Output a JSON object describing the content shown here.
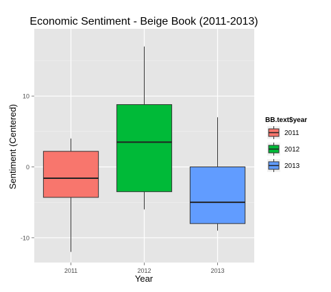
{
  "chart_data": {
    "type": "box",
    "title": "Economic Sentiment - Beige Book (2011-2013)",
    "xlabel": "Year",
    "ylabel": "Sentiment (Centered)",
    "ylim": [
      -13.5,
      19.5
    ],
    "ytick_values": [
      -10,
      0,
      10
    ],
    "ytick_labels": [
      "-10",
      "0",
      "10"
    ],
    "categories": [
      "2011",
      "2012",
      "2013"
    ],
    "series": [
      {
        "name": "2011",
        "color": "#F8766D",
        "min": -12,
        "q1": -4.3,
        "median": -1.6,
        "q3": 2.2,
        "max": 4.0
      },
      {
        "name": "2012",
        "color": "#00BA38",
        "min": -6,
        "q1": -3.5,
        "median": 3.5,
        "q3": 8.8,
        "max": 17.0
      },
      {
        "name": "2013",
        "color": "#619CFF",
        "min": -9,
        "q1": -8.0,
        "median": -5.0,
        "q3": 0.0,
        "max": 7.0
      }
    ],
    "grid": true,
    "legend": {
      "title": "BB.text$year",
      "position": "right",
      "entries": [
        "2011",
        "2012",
        "2013"
      ]
    }
  }
}
